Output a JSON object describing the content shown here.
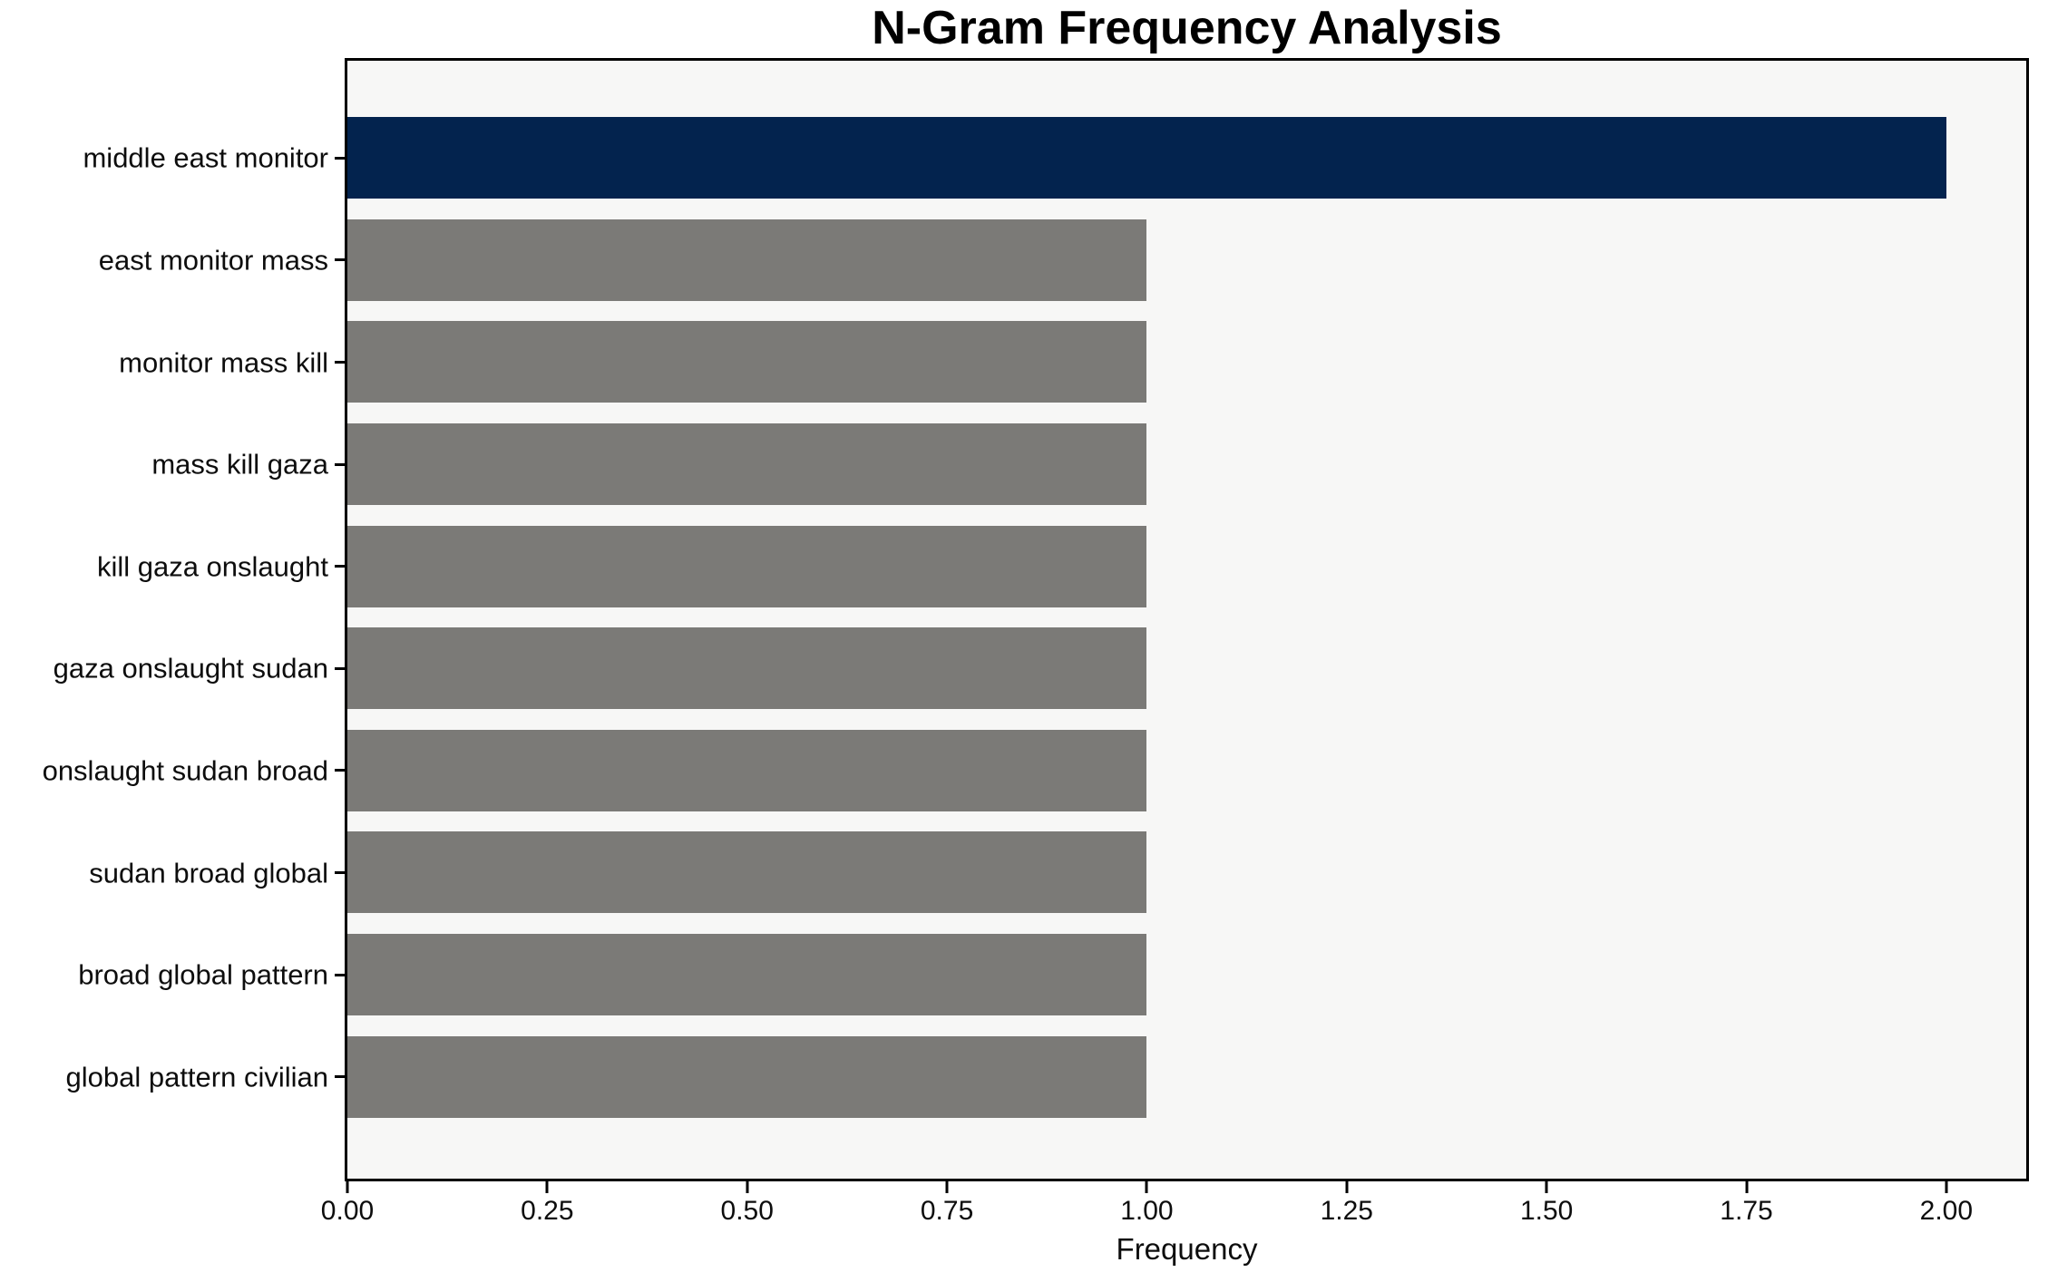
{
  "chart_data": {
    "type": "bar",
    "orientation": "horizontal",
    "title": "N-Gram Frequency Analysis",
    "xlabel": "Frequency",
    "ylabel": "",
    "categories": [
      "middle east monitor",
      "east monitor mass",
      "monitor mass kill",
      "mass kill gaza",
      "kill gaza onslaught",
      "gaza onslaught sudan",
      "onslaught sudan broad",
      "sudan broad global",
      "broad global pattern",
      "global pattern civilian"
    ],
    "values": [
      2,
      1,
      1,
      1,
      1,
      1,
      1,
      1,
      1,
      1
    ],
    "bar_colors": [
      "#03234e",
      "#7b7a77",
      "#7b7a77",
      "#7b7a77",
      "#7b7a77",
      "#7b7a77",
      "#7b7a77",
      "#7b7a77",
      "#7b7a77",
      "#7b7a77"
    ],
    "xtick_labels": [
      "0.00",
      "0.25",
      "0.50",
      "0.75",
      "1.00",
      "1.25",
      "1.50",
      "1.75",
      "2.00"
    ],
    "xtick_values": [
      0,
      0.25,
      0.5,
      0.75,
      1.0,
      1.25,
      1.5,
      1.75,
      2.0
    ],
    "xlim": [
      0,
      2.1
    ],
    "grid": false,
    "legend": false,
    "colors": {
      "highlight_bar": "#03234e",
      "default_bar": "#7b7a77",
      "plot_background": "#f7f7f6",
      "figure_background": "#ffffff",
      "spine": "#000000",
      "text": "#0d0d0d"
    }
  }
}
